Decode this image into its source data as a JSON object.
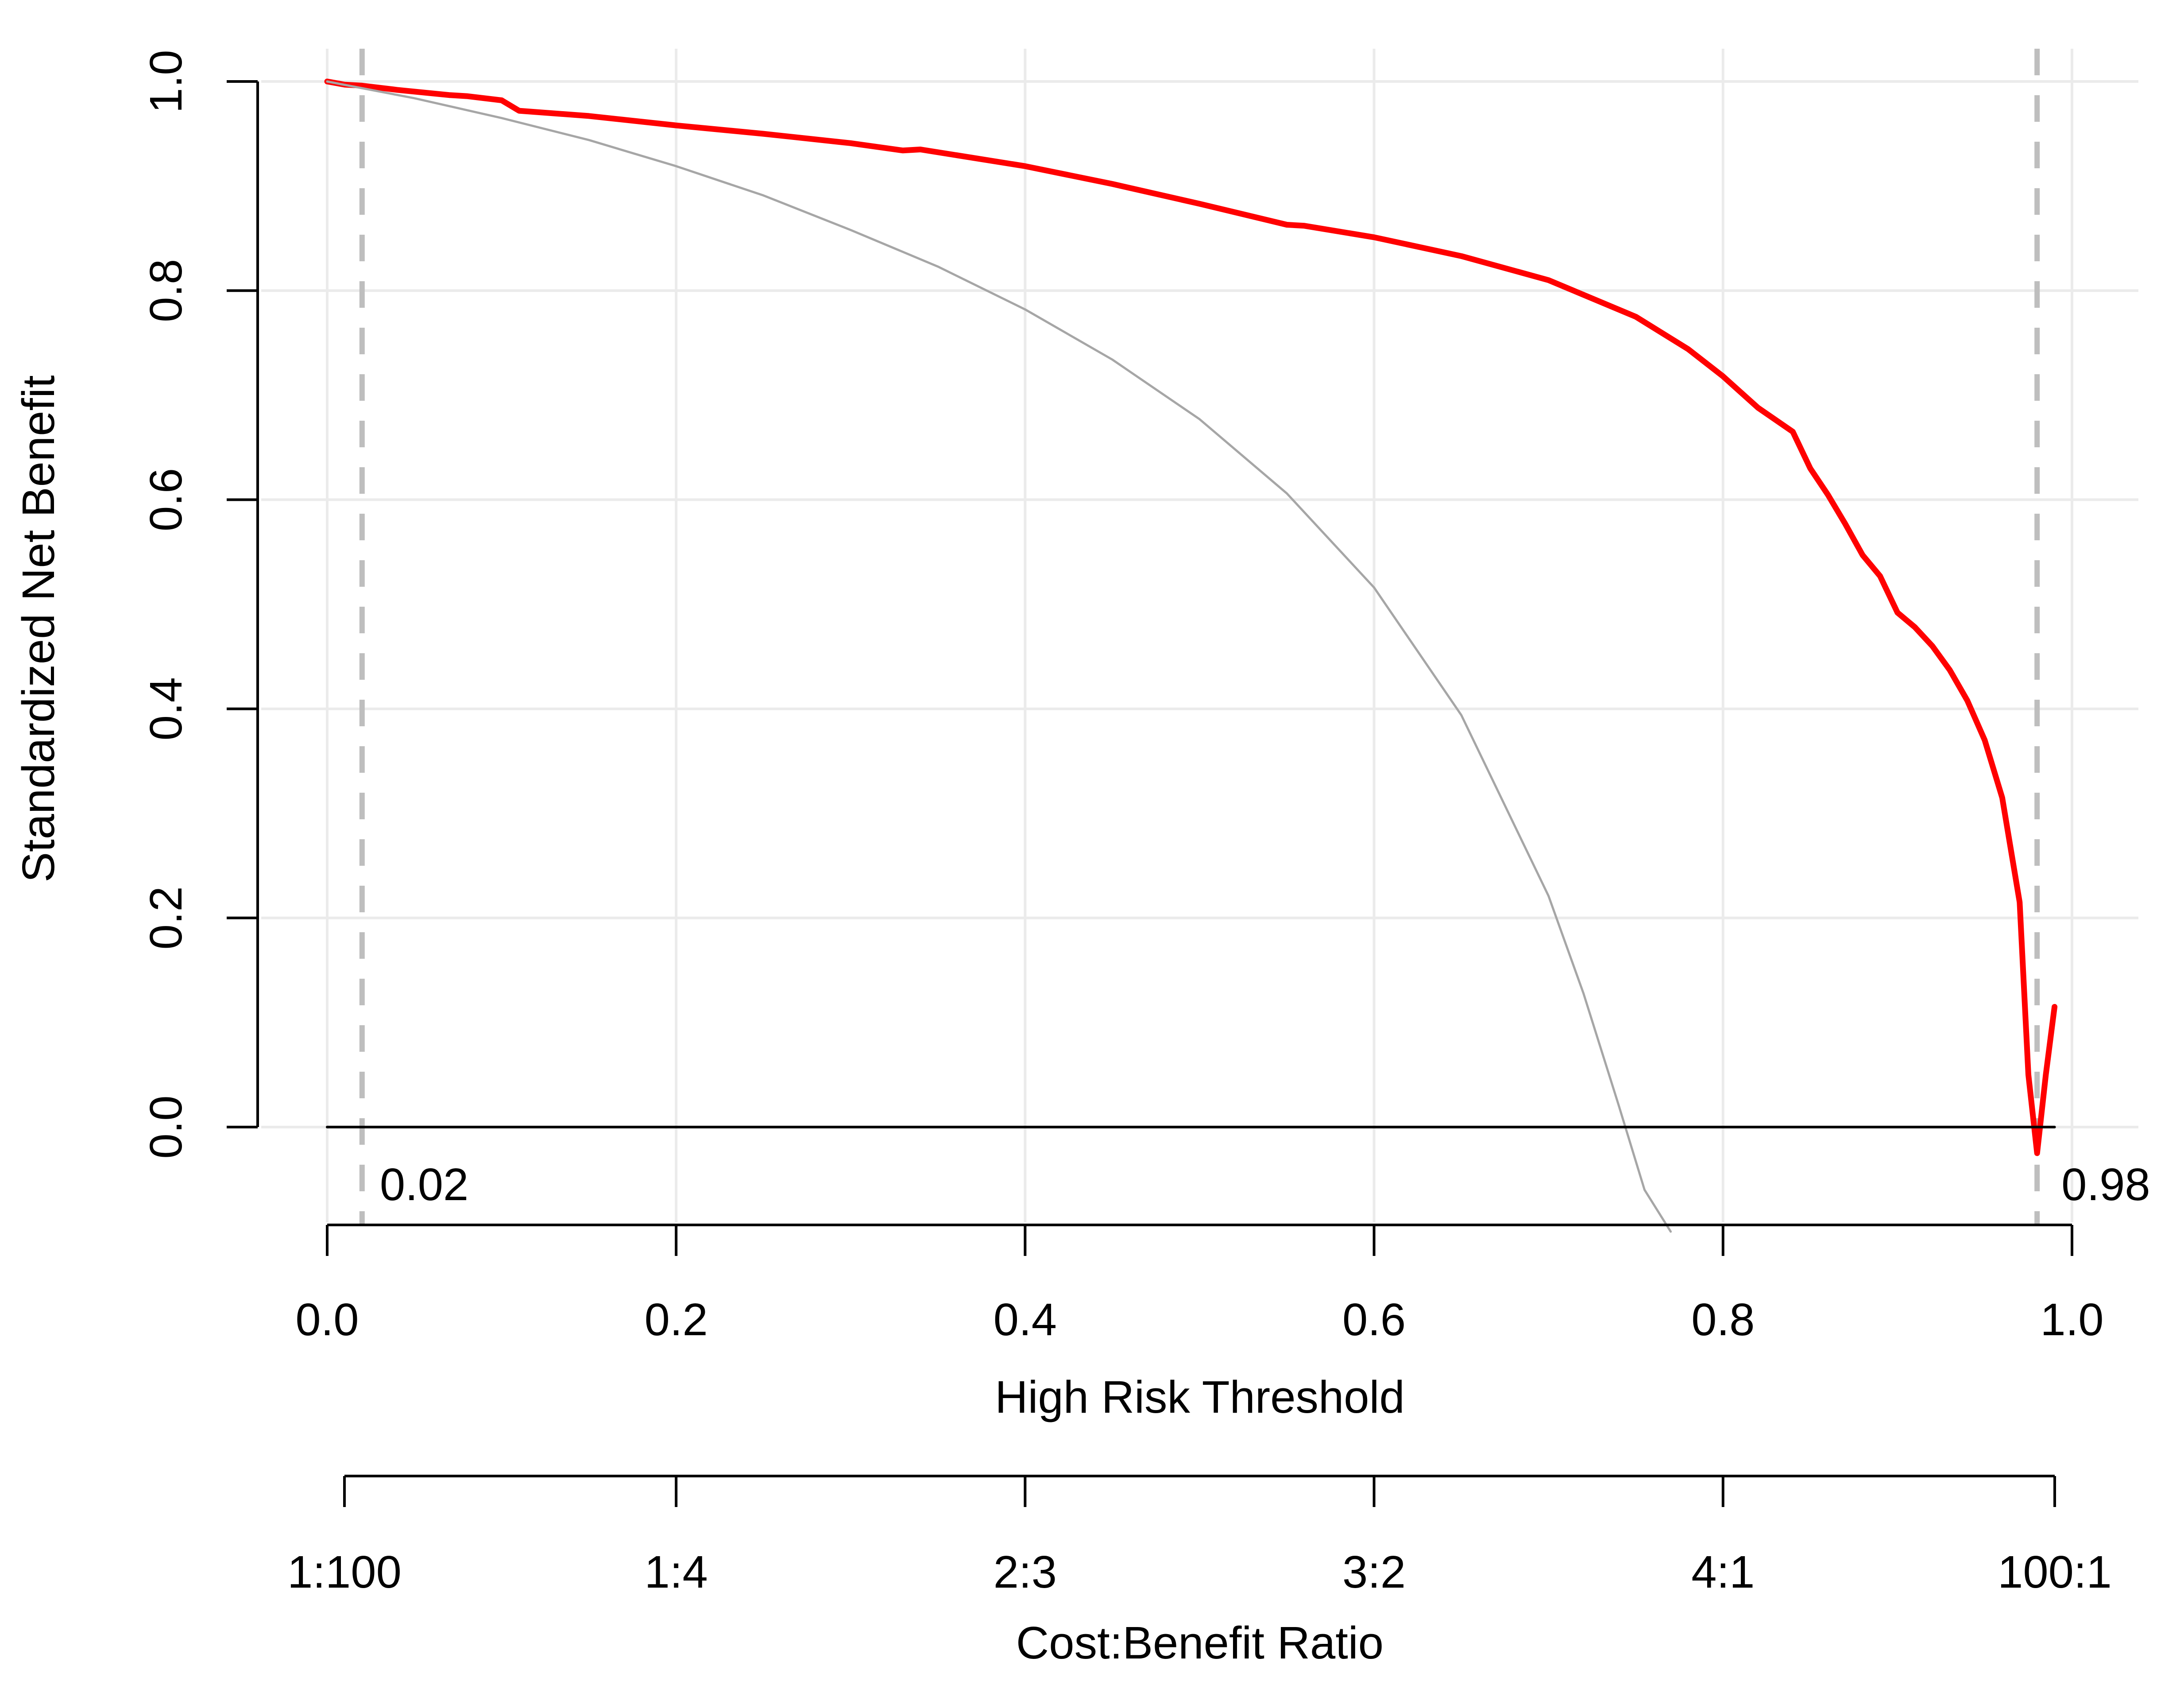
{
  "chart_data": {
    "type": "line",
    "xlabel": "High Risk Threshold",
    "ylabel": "Standardized Net Benefit",
    "x2label": "Cost:Benefit Ratio",
    "xlim": [
      0,
      1
    ],
    "ylim": [
      -0.1,
      1.0
    ],
    "grid": true,
    "x_ticks": [
      "0.0",
      "0.2",
      "0.4",
      "0.6",
      "0.8",
      "1.0"
    ],
    "x_tick_values": [
      0,
      0.2,
      0.4,
      0.6,
      0.8,
      1.0
    ],
    "y_ticks": [
      "0.0",
      "0.2",
      "0.4",
      "0.6",
      "0.8",
      "1.0"
    ],
    "y_tick_values": [
      0,
      0.2,
      0.4,
      0.6,
      0.8,
      1.0
    ],
    "cost_benefit_ticks": [
      "1:100",
      "1:4",
      "2:3",
      "3:2",
      "4:1",
      "100:1"
    ],
    "cost_benefit_tick_values": [
      0.0099,
      0.2,
      0.4,
      0.6,
      0.8,
      0.9901
    ],
    "threshold_lines": [
      {
        "x": 0.02,
        "label": "0.02"
      },
      {
        "x": 0.98,
        "label": "0.98"
      }
    ],
    "series": [
      {
        "color": "#ff0000",
        "x": [
          0.0,
          0.01,
          0.02,
          0.04,
          0.07,
          0.08,
          0.1,
          0.11,
          0.15,
          0.2,
          0.25,
          0.3,
          0.33,
          0.34,
          0.4,
          0.45,
          0.5,
          0.55,
          0.56,
          0.6,
          0.65,
          0.7,
          0.75,
          0.78,
          0.8,
          0.82,
          0.84,
          0.85,
          0.86,
          0.87,
          0.88,
          0.89,
          0.9,
          0.91,
          0.92,
          0.93,
          0.94,
          0.95,
          0.96,
          0.97,
          0.975,
          0.98,
          0.985,
          0.99
        ],
        "y": [
          1.0,
          0.997,
          0.996,
          0.992,
          0.987,
          0.986,
          0.982,
          0.972,
          0.967,
          0.958,
          0.95,
          0.941,
          0.934,
          0.935,
          0.919,
          0.902,
          0.883,
          0.863,
          0.862,
          0.851,
          0.833,
          0.81,
          0.775,
          0.744,
          0.718,
          0.688,
          0.665,
          0.63,
          0.605,
          0.577,
          0.547,
          0.527,
          0.492,
          0.478,
          0.46,
          0.437,
          0.408,
          0.37,
          0.315,
          0.215,
          0.05,
          -0.025,
          0.05,
          0.115
        ]
      },
      {
        "color": "#a6a6a6",
        "x": [
          0.0,
          0.05,
          0.1,
          0.15,
          0.2,
          0.25,
          0.3,
          0.35,
          0.4,
          0.45,
          0.5,
          0.55,
          0.6,
          0.65,
          0.7,
          0.72,
          0.74,
          0.755,
          0.77
        ],
        "y": [
          1.0,
          0.984,
          0.965,
          0.944,
          0.919,
          0.891,
          0.858,
          0.823,
          0.782,
          0.734,
          0.677,
          0.606,
          0.516,
          0.394,
          0.221,
          0.128,
          0.022,
          -0.06,
          -0.1
        ]
      },
      {
        "color": "#000000",
        "x": [
          0.0,
          0.99
        ],
        "y": [
          0.0,
          0.0
        ]
      }
    ]
  }
}
